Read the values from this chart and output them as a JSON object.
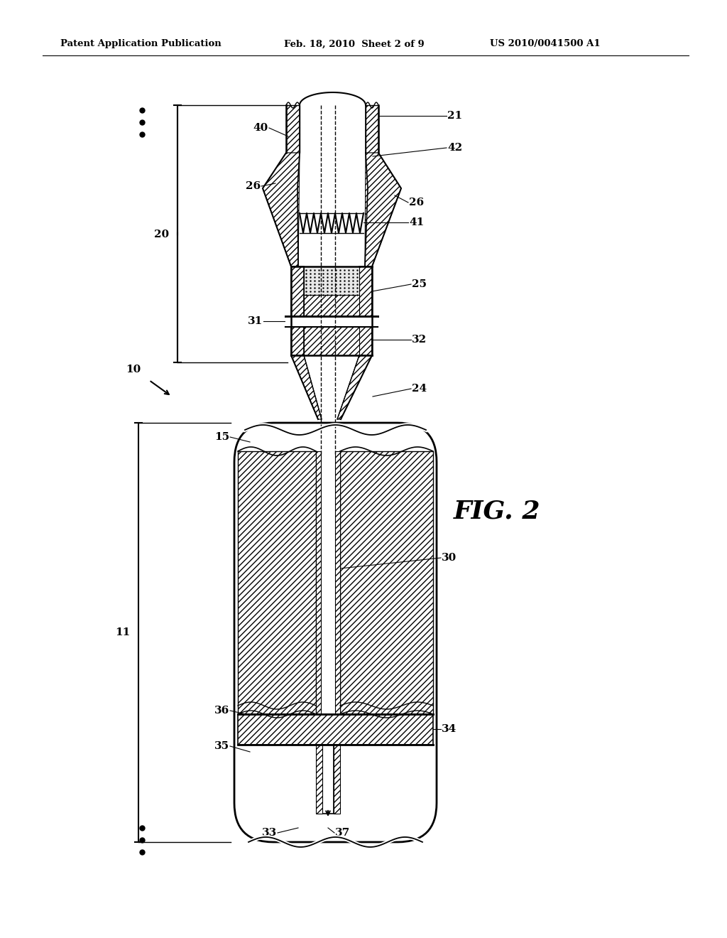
{
  "header_left": "Patent Application Publication",
  "header_mid": "Feb. 18, 2010  Sheet 2 of 9",
  "header_right": "US 2010/0041500 A1",
  "fig_label": "FIG. 2",
  "bg_color": "#ffffff"
}
